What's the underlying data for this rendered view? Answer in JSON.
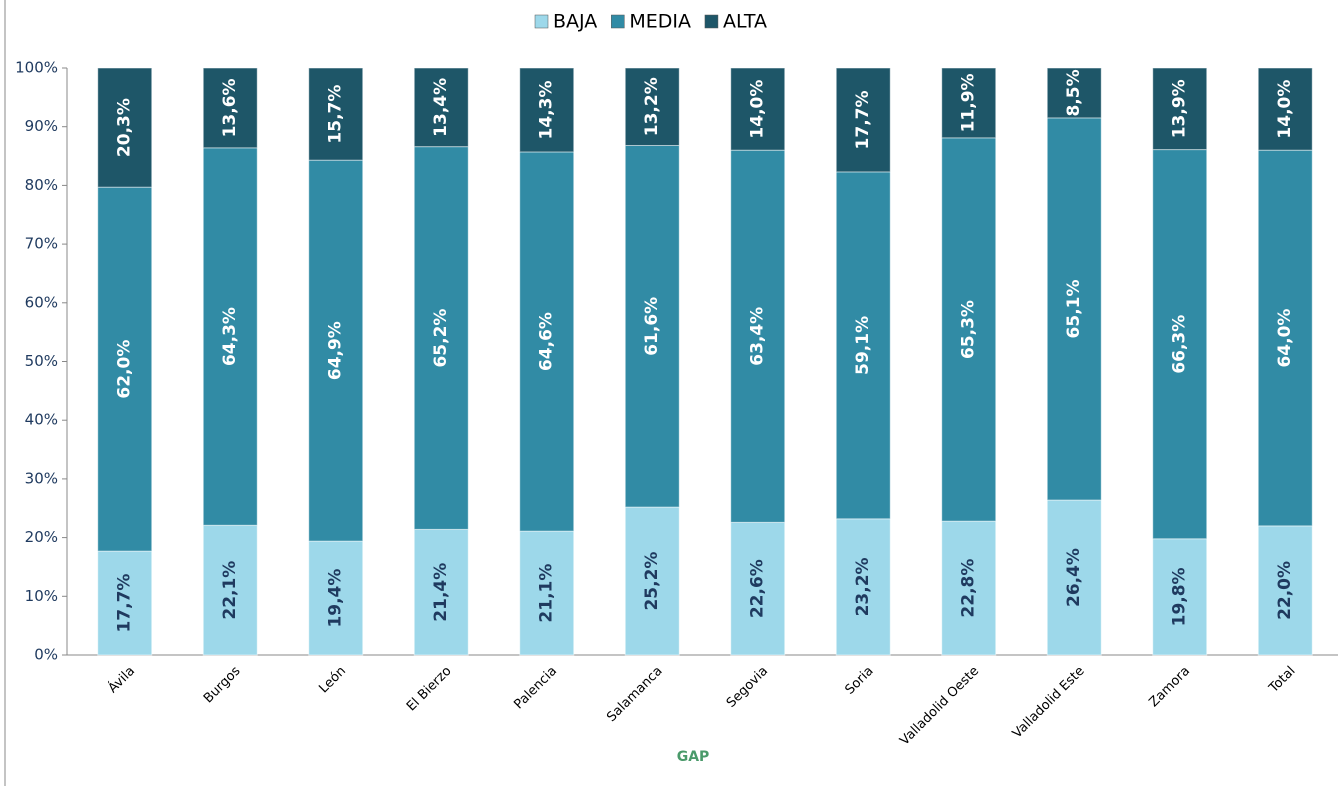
{
  "chart_data": {
    "type": "stacked_bar",
    "categories": [
      "Ávila",
      "Burgos",
      "León",
      "El Bierzo",
      "Palencia",
      "Salamanca",
      "Segovia",
      "Soria",
      "Valladolid Oeste",
      "Valladolid Este",
      "Zamora",
      "Total"
    ],
    "series": [
      {
        "name": "BAJA",
        "color": "#9dd8ea",
        "label_color": "#1f3a5f",
        "values": [
          17.7,
          22.1,
          19.4,
          21.4,
          21.1,
          25.2,
          22.6,
          23.2,
          22.8,
          26.4,
          19.8,
          22.0
        ],
        "value_labels": [
          "17,7%",
          "22,1%",
          "19,4%",
          "21,4%",
          "21,1%",
          "25,2%",
          "22,6%",
          "23,2%",
          "22,8%",
          "26,4%",
          "19,8%",
          "22,0%"
        ]
      },
      {
        "name": "MEDIA",
        "color": "#318ba5",
        "label_color": "#ffffff",
        "values": [
          62.0,
          64.3,
          64.9,
          65.2,
          64.6,
          61.6,
          63.4,
          59.1,
          65.3,
          65.1,
          66.3,
          64.0
        ],
        "value_labels": [
          "62,0%",
          "64,3%",
          "64,9%",
          "65,2%",
          "64,6%",
          "61,6%",
          "63,4%",
          "59,1%",
          "65,3%",
          "65,1%",
          "66,3%",
          "64,0%"
        ]
      },
      {
        "name": "ALTA",
        "color": "#1e5668",
        "label_color": "#ffffff",
        "values": [
          20.3,
          13.6,
          15.7,
          13.4,
          14.3,
          13.2,
          14.0,
          17.7,
          11.9,
          8.5,
          13.9,
          14.0
        ],
        "value_labels": [
          "20,3%",
          "13,6%",
          "15,7%",
          "13,4%",
          "14,3%",
          "13,2%",
          "14,0%",
          "17,7%",
          "11,9%",
          "8,5%",
          "13,9%",
          "14,0%"
        ]
      }
    ],
    "xlabel": "GAP",
    "ylim": [
      0,
      100
    ],
    "yticks": [
      {
        "value": 0,
        "label": "0%"
      },
      {
        "value": 10,
        "label": "10%"
      },
      {
        "value": 20,
        "label": "20%"
      },
      {
        "value": 30,
        "label": "30%"
      },
      {
        "value": 40,
        "label": "40%"
      },
      {
        "value": 50,
        "label": "50%"
      },
      {
        "value": 60,
        "label": "60%"
      },
      {
        "value": 70,
        "label": "70%"
      },
      {
        "value": 80,
        "label": "80%"
      },
      {
        "value": 90,
        "label": "90%"
      },
      {
        "value": 100,
        "label": "100%"
      }
    ],
    "legend": "top"
  }
}
